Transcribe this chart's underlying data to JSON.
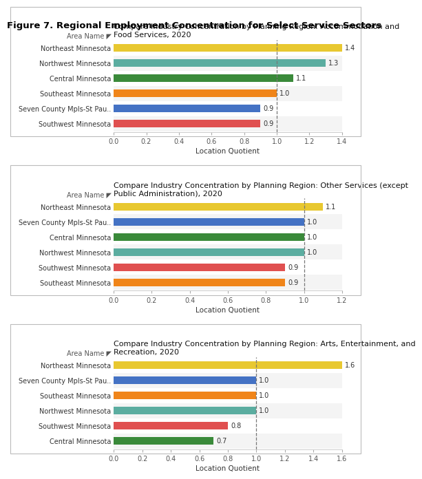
{
  "figure_title": "Figure 7. Regional Employment Concentration for Select Service Sectors",
  "charts": [
    {
      "title": "Compare Industry Concentration by Planning Region: Accommodation and\nFood Services, 2020",
      "categories": [
        "Northeast Minnesota",
        "Northwest Minnesota",
        "Central Minnesota",
        "Southeast Minnesota",
        "Seven County Mpls-St Pau..",
        "Southwest Minnesota"
      ],
      "values": [
        1.4,
        1.3,
        1.1,
        1.0,
        0.9,
        0.9
      ],
      "colors": [
        "#E8C830",
        "#5BADA0",
        "#3A8A3A",
        "#F0851A",
        "#4472C4",
        "#E05050"
      ],
      "xlim": [
        0,
        1.4
      ],
      "xticks": [
        0.0,
        0.2,
        0.4,
        0.6,
        0.8,
        1.0,
        1.2,
        1.4
      ],
      "ref_line": 1.0,
      "xlabel": "Location Quotient"
    },
    {
      "title": "Compare Industry Concentration by Planning Region: Other Services (except\nPublic Administration), 2020",
      "categories": [
        "Northeast Minnesota",
        "Seven County Mpls-St Pau..",
        "Central Minnesota",
        "Northwest Minnesota",
        "Southwest Minnesota",
        "Southeast Minnesota"
      ],
      "values": [
        1.1,
        1.0,
        1.0,
        1.0,
        0.9,
        0.9
      ],
      "colors": [
        "#E8C830",
        "#4472C4",
        "#3A8A3A",
        "#5BADA0",
        "#E05050",
        "#F0851A"
      ],
      "xlim": [
        0,
        1.2
      ],
      "xticks": [
        0.0,
        0.2,
        0.4,
        0.6,
        0.8,
        1.0,
        1.2
      ],
      "ref_line": 1.0,
      "xlabel": "Location Quotient"
    },
    {
      "title": "Compare Industry Concentration by Planning Region: Arts, Entertainment, and\nRecreation, 2020",
      "categories": [
        "Northeast Minnesota",
        "Seven County Mpls-St Pau..",
        "Southeast Minnesota",
        "Northwest Minnesota",
        "Southwest Minnesota",
        "Central Minnesota"
      ],
      "values": [
        1.6,
        1.0,
        1.0,
        1.0,
        0.8,
        0.7
      ],
      "colors": [
        "#E8C830",
        "#4472C4",
        "#F0851A",
        "#5BADA0",
        "#E05050",
        "#3A8A3A"
      ],
      "xlim": [
        0,
        1.6
      ],
      "xticks": [
        0.0,
        0.2,
        0.4,
        0.6,
        0.8,
        1.0,
        1.2,
        1.4,
        1.6
      ],
      "ref_line": 1.0,
      "xlabel": "Location Quotient"
    }
  ],
  "background_color": "#FFFFFF",
  "panel_bg": "#FFFFFF",
  "bar_height": 0.5,
  "label_fontsize": 7.0,
  "title_fontsize": 8.0,
  "axis_fontsize": 7.0,
  "value_fontsize": 7.0,
  "area_name_fontsize": 7.0,
  "ref_line_color": "#777777",
  "alt_row_color": "#EEEEEE"
}
